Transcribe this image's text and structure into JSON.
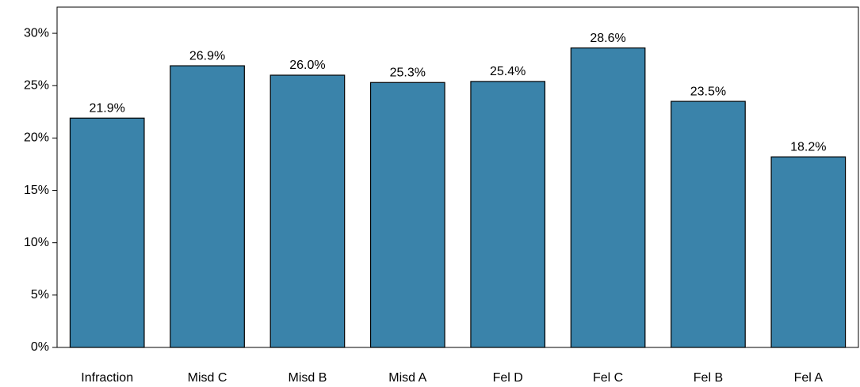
{
  "chart_data": {
    "type": "bar",
    "categories": [
      "Infraction",
      "Misd C",
      "Misd B",
      "Misd A",
      "Fel D",
      "Fel C",
      "Fel B",
      "Fel A"
    ],
    "values": [
      21.9,
      26.9,
      26.0,
      25.3,
      25.4,
      28.6,
      23.5,
      18.2
    ],
    "value_labels": [
      "21.9%",
      "26.9%",
      "26.0%",
      "25.3%",
      "25.4%",
      "28.6%",
      "23.5%",
      "18.2%"
    ],
    "color": "#3a83aa",
    "ylim": [
      0,
      32.5
    ],
    "yticks": [
      {
        "value": 0,
        "label": "0%"
      },
      {
        "value": 5,
        "label": "5%"
      },
      {
        "value": 10,
        "label": "10%"
      },
      {
        "value": 15,
        "label": "15%"
      },
      {
        "value": 20,
        "label": "20%"
      },
      {
        "value": 25,
        "label": "25%"
      },
      {
        "value": 30,
        "label": "30%"
      }
    ]
  }
}
